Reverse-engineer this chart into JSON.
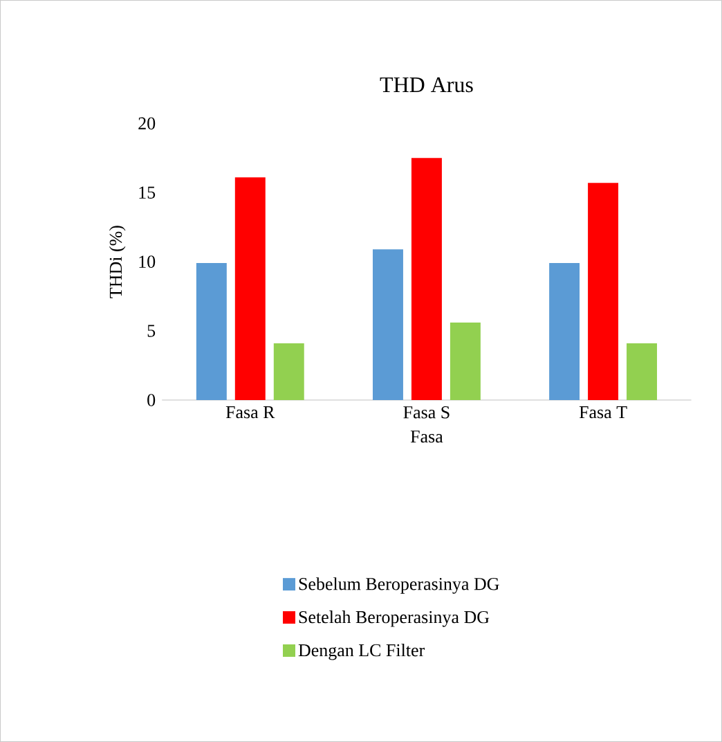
{
  "chart_data": {
    "type": "bar",
    "title": "THD Arus",
    "xlabel": "Fasa",
    "ylabel": "THDi (%)",
    "categories": [
      "Fasa R",
      "Fasa S",
      "Fasa T"
    ],
    "series": [
      {
        "name": "Sebelum Beroperasinya DG",
        "color": "#5b9bd5",
        "values": [
          9.9,
          10.9,
          9.9
        ]
      },
      {
        "name": "Setelah Beroperasinya DG",
        "color": "#ff0000",
        "values": [
          16.1,
          17.5,
          15.7
        ]
      },
      {
        "name": "Dengan LC Filter",
        "color": "#92d050",
        "values": [
          4.1,
          5.6,
          4.1
        ]
      }
    ],
    "ylim": [
      0,
      20
    ],
    "yticks": [
      0,
      5,
      10,
      15,
      20
    ],
    "legend": "bottom"
  }
}
